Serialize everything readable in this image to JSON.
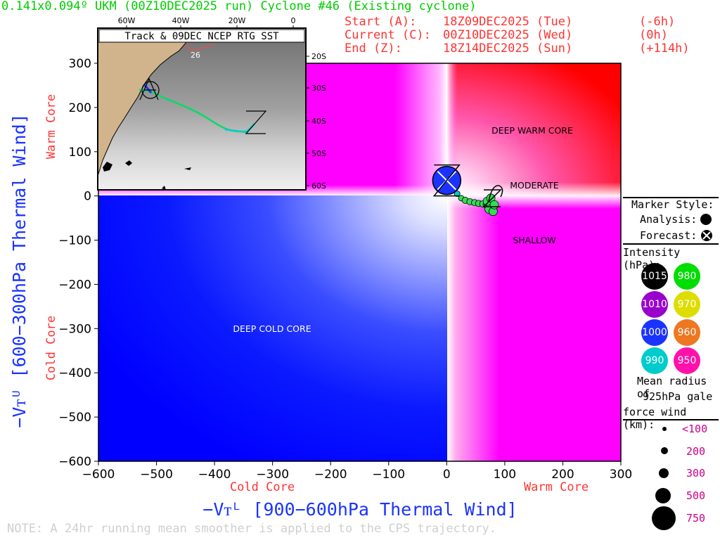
{
  "title": "0.141x0.094º UKM (00Z10DEC2025 run) Cyclone #46 (Existing cyclone)",
  "info": {
    "start_label": "Start (A):",
    "start_time": "18Z09DEC2025 (Tue)",
    "start_offset": "(-6h)",
    "current_label": "Current (C):",
    "current_time": "00Z10DEC2025 (Wed)",
    "current_offset": "(0h)",
    "end_label": "End (Z):",
    "end_time": "18Z14DEC2025 (Sun)",
    "end_offset": "(+114h)"
  },
  "inset": {
    "title": "Track & 09DEC NCEP RTG SST",
    "lon_labels": [
      "60W",
      "40W",
      "20W",
      "0"
    ],
    "lat_labels": [
      "20S",
      "30S",
      "40S",
      "50S",
      "60S"
    ],
    "sst_label": "26",
    "track_markers": [
      "A",
      "Z"
    ]
  },
  "quadrant_labels": {
    "deep_warm": "DEEP WARM CORE",
    "moderate": "MODERATE",
    "shallow": "SHALLOW",
    "deep_cold": "DEEP COLD CORE"
  },
  "axes": {
    "y_title": "−Vᴛᵁ [600−300hPa Thermal Wind]",
    "x_title": "−Vᴛᴸ [900−600hPa Thermal Wind]",
    "y_warm": "Warm Core",
    "y_cold": "Cold Core",
    "x_cold": "Cold Core",
    "x_warm": "Warm Core"
  },
  "legend": {
    "marker_style": "Marker Style:",
    "analysis": "Analysis:",
    "forecast": "Forecast:",
    "intensity": "Intensity (hPa):",
    "intensity_values": [
      {
        "label": "1015",
        "color": "#000000"
      },
      {
        "label": "980",
        "color": "#00dd00"
      },
      {
        "label": "1010",
        "color": "#9900cc"
      },
      {
        "label": "970",
        "color": "#dddd00"
      },
      {
        "label": "1000",
        "color": "#1a33ff"
      },
      {
        "label": "960",
        "color": "#ee7722"
      },
      {
        "label": "990",
        "color": "#00cccc"
      },
      {
        "label": "950",
        "color": "#ff11aa"
      }
    ],
    "radius_title_1": "Mean radius of",
    "radius_title_2": "925hPa gale",
    "radius_title_3": "force wind (km):",
    "radius_values": [
      "<100",
      "200",
      "300",
      "500",
      "750"
    ]
  },
  "note": "NOTE: A 24hr running mean smoother is applied to the CPS trajectory.",
  "colors": {
    "title": "#00cc00",
    "info": "#ff3333",
    "axis_title": "#1a33ff",
    "core_label": "#ff3333"
  },
  "chart_data": {
    "type": "scatter",
    "xlabel": "−Vᴛᴸ [900−600hPa Thermal Wind]",
    "ylabel": "−Vᴛᵁ [600−300hPa Thermal Wind]",
    "xlim": [
      -600,
      300
    ],
    "ylim": [
      -600,
      300
    ],
    "x_ticks": [
      -600,
      -500,
      -400,
      -300,
      -200,
      -100,
      0,
      100,
      200,
      300
    ],
    "y_ticks": [
      300,
      200,
      100,
      0,
      -100,
      -200,
      -300,
      -400,
      -500,
      -600
    ],
    "x_tick_labels": [
      "−600",
      "−500",
      "−400",
      "−300",
      "−200",
      "−100",
      "0",
      "100",
      "200",
      "300"
    ],
    "y_tick_labels": [
      "300",
      "200",
      "100",
      "0",
      "−100",
      "−200",
      "−300",
      "−400",
      "−500",
      "−600"
    ],
    "current_point": {
      "x": 0,
      "y": 35,
      "pressure": 1000
    },
    "trajectory": [
      {
        "x": 0,
        "y": 35
      },
      {
        "x": 10,
        "y": 20
      },
      {
        "x": 18,
        "y": 5
      },
      {
        "x": 25,
        "y": -5
      },
      {
        "x": 32,
        "y": -10
      },
      {
        "x": 40,
        "y": -13
      },
      {
        "x": 48,
        "y": -15
      },
      {
        "x": 55,
        "y": -17
      },
      {
        "x": 62,
        "y": -18
      },
      {
        "x": 68,
        "y": -20
      },
      {
        "x": 72,
        "y": -22
      },
      {
        "x": 75,
        "y": -15
      },
      {
        "x": 78,
        "y": -25
      },
      {
        "x": 73,
        "y": -30
      },
      {
        "x": 80,
        "y": -35
      },
      {
        "x": 70,
        "y": -12
      },
      {
        "x": 76,
        "y": -5
      },
      {
        "x": 82,
        "y": -20
      }
    ],
    "trajectory_pressure": 980
  }
}
